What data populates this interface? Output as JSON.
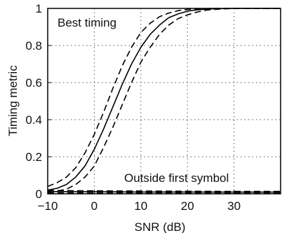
{
  "chart_data": {
    "type": "line",
    "xlabel": "SNR (dB)",
    "ylabel": "Timing metric",
    "xlim": [
      -10,
      40
    ],
    "ylim": [
      0,
      1
    ],
    "xticks": [
      "-10",
      "0",
      "10",
      "20",
      "30"
    ],
    "yticks": [
      "0",
      "0.2",
      "0.4",
      "0.6",
      "0.8",
      "1"
    ],
    "grid": true,
    "annotations": [
      "Best timing",
      "Outside first symbol"
    ],
    "series": [
      {
        "style": "solid",
        "x": [
          -10,
          -8,
          -6,
          -4,
          -2,
          0,
          2,
          4,
          6,
          8,
          10,
          12,
          14,
          16,
          18,
          20,
          22,
          24,
          26,
          30,
          40
        ],
        "y": [
          0.02,
          0.03,
          0.05,
          0.09,
          0.15,
          0.24,
          0.35,
          0.47,
          0.59,
          0.7,
          0.79,
          0.86,
          0.91,
          0.95,
          0.97,
          0.985,
          0.992,
          0.996,
          0.998,
          1.0,
          1.0
        ]
      },
      {
        "style": "dashed",
        "x": [
          -10,
          -8,
          -6,
          -4,
          -2,
          0,
          2,
          4,
          6,
          8,
          10,
          12,
          14,
          16,
          18,
          20,
          22,
          24,
          26,
          30,
          40
        ],
        "y": [
          0.04,
          0.06,
          0.09,
          0.14,
          0.22,
          0.32,
          0.44,
          0.57,
          0.69,
          0.79,
          0.87,
          0.92,
          0.955,
          0.975,
          0.988,
          0.994,
          0.997,
          0.999,
          1.0,
          1.0,
          1.0
        ]
      },
      {
        "style": "dashed",
        "x": [
          -10,
          -8,
          -6,
          -4,
          -2,
          0,
          2,
          4,
          6,
          8,
          10,
          12,
          14,
          16,
          18,
          20,
          22,
          24,
          26,
          30,
          40
        ],
        "y": [
          0.01,
          0.015,
          0.025,
          0.05,
          0.09,
          0.15,
          0.25,
          0.36,
          0.48,
          0.6,
          0.71,
          0.79,
          0.86,
          0.91,
          0.945,
          0.965,
          0.98,
          0.99,
          0.995,
          1.0,
          1.0
        ]
      },
      {
        "style": "solid",
        "x": [
          -10,
          0,
          10,
          20,
          30,
          40
        ],
        "y": [
          0.012,
          0.011,
          0.01,
          0.01,
          0.009,
          0.009
        ]
      },
      {
        "style": "dashed",
        "x": [
          -10,
          0,
          10,
          20,
          30,
          40
        ],
        "y": [
          0.018,
          0.016,
          0.015,
          0.014,
          0.013,
          0.013
        ]
      },
      {
        "style": "dashed",
        "x": [
          -10,
          0,
          10,
          20,
          30,
          40
        ],
        "y": [
          0.005,
          0.004,
          0.004,
          0.004,
          0.003,
          0.003
        ]
      }
    ]
  }
}
